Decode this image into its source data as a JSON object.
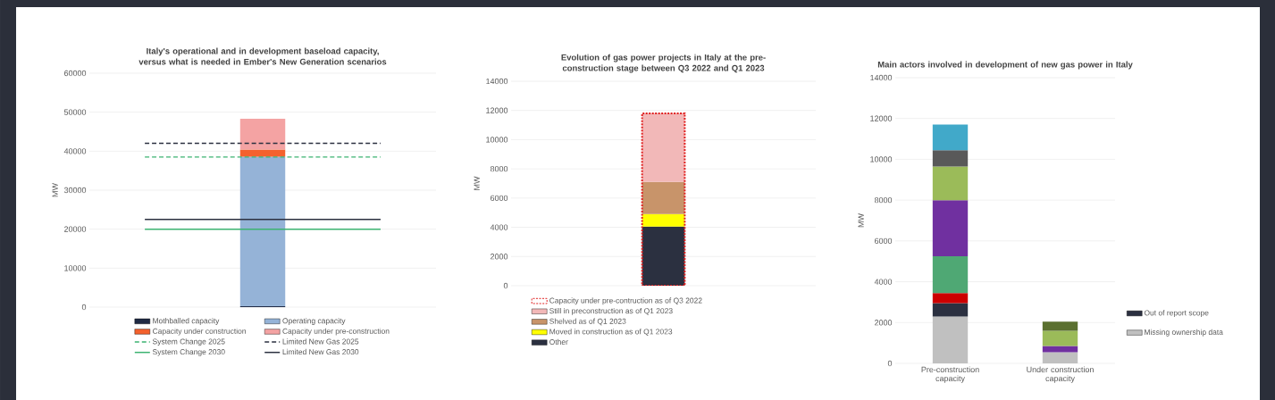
{
  "chart_data": [
    {
      "type": "bar",
      "stacked": true,
      "title": "Italy's operational and in development baseload capacity, versus what is needed in Ember's New Generation scenarios",
      "ylabel": "MW",
      "categories": [
        null
      ],
      "ylim": [
        0,
        60000
      ],
      "yticks": [
        0,
        10000,
        20000,
        30000,
        40000,
        50000,
        60000
      ],
      "grid": "y",
      "legend": "bottom",
      "series": [
        {
          "name": "Mothballed capacity",
          "color": "#1f2a44",
          "values": [
            200
          ]
        },
        {
          "name": "Operating capacity",
          "color": "#95b3d7",
          "values": [
            38400
          ]
        },
        {
          "name": "Capacity under construction",
          "color": "#f4612d",
          "values": [
            1800
          ]
        },
        {
          "name": "Capacity under pre-construction",
          "color": "#f4a3a3",
          "values": [
            7900
          ]
        }
      ],
      "ref_lines": [
        {
          "axis": "y",
          "value": 38500,
          "label": "System Change 2025",
          "color": "#3cb371",
          "line_style": "dashed"
        },
        {
          "axis": "y",
          "value": 42000,
          "label": "Limited New Gas 2025",
          "color": "#2b3040",
          "line_style": "dashed"
        },
        {
          "axis": "y",
          "value": 20000,
          "label": "System Change 2030",
          "color": "#3cb371",
          "line_style": "solid"
        },
        {
          "axis": "y",
          "value": 22500,
          "label": "Limited New Gas 2030",
          "color": "#2b3040",
          "line_style": "solid"
        }
      ]
    },
    {
      "type": "bar",
      "title": "Evolution of gas power projects in Italy at the pre-construction stage between Q3 2022 and Q1 2023",
      "ylabel": "MW",
      "categories": [
        null
      ],
      "ylim": [
        0,
        14000
      ],
      "yticks": [
        0,
        2000,
        4000,
        6000,
        8000,
        10000,
        12000,
        14000
      ],
      "grid": "y",
      "legend": "bottom",
      "series": [
        {
          "name": "Other",
          "color": "#2b3040",
          "base": [
            0
          ],
          "values": [
            4050
          ]
        },
        {
          "name": "Moved in construction as of Q1 2023",
          "color": "#ffff00",
          "base": [
            4050
          ],
          "values": [
            850
          ]
        },
        {
          "name": "Shelved as of Q1 2023",
          "color": "#c8946a",
          "base": [
            4900
          ],
          "values": [
            2200
          ]
        },
        {
          "name": "Still in preconstruction as of Q1 2023",
          "color": "#f2b8b8",
          "base": [
            7100
          ],
          "values": [
            4700
          ]
        },
        {
          "name": "Capacity under pre-contruction as of Q3 2022",
          "color": "#e02020",
          "line_style": "dotted",
          "base": [
            0
          ],
          "values": [
            11800
          ]
        }
      ]
    },
    {
      "type": "bar",
      "stacked": true,
      "title": "Main actors involved in development of new gas power in Italy",
      "ylabel": "MW",
      "categories": [
        "Pre-construction capacity",
        "Under construction capacity"
      ],
      "ylim": [
        0,
        14000
      ],
      "yticks": [
        0,
        2000,
        4000,
        6000,
        8000,
        10000,
        12000,
        14000
      ],
      "grid": "y",
      "legend": "right",
      "series": [
        {
          "name": "Missing ownership data",
          "color": "#c0c0c0",
          "values": [
            2300,
            550
          ]
        },
        {
          "name": "Out of report scope",
          "color": "#2b3040",
          "values": [
            650,
            0
          ]
        },
        {
          "color": "#cc0000",
          "values": [
            500,
            0
          ]
        },
        {
          "color": "#4fa874",
          "values": [
            1800,
            0
          ]
        },
        {
          "color": "#7030a0",
          "values": [
            2750,
            300
          ]
        },
        {
          "color": "#9bbb59",
          "values": [
            1650,
            750
          ]
        },
        {
          "color": "#595959",
          "values": [
            800,
            0
          ]
        },
        {
          "color": "#41a9c9",
          "values": [
            1250,
            0
          ]
        },
        {
          "color": "#5b7030",
          "values": [
            0,
            450
          ]
        }
      ]
    }
  ]
}
